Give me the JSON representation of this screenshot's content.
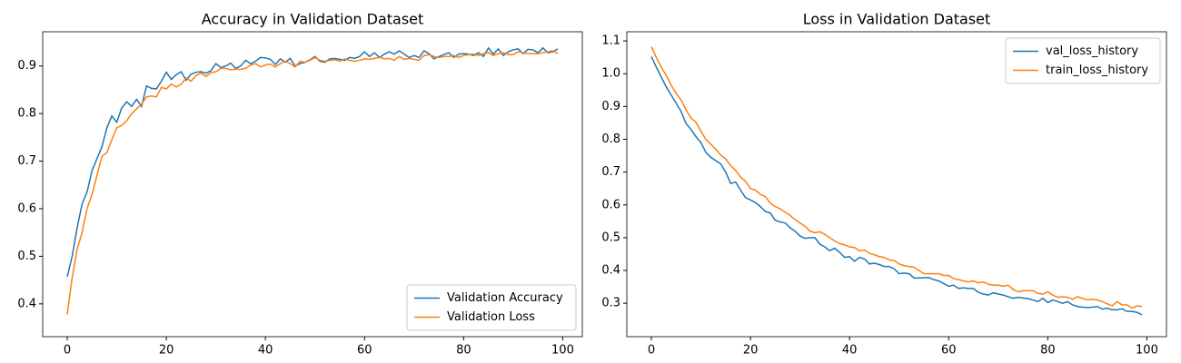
{
  "chart_data": [
    {
      "type": "line",
      "title": "Accuracy in Validation Dataset",
      "x": [
        0,
        1,
        2,
        3,
        4,
        5,
        6,
        7,
        8,
        9,
        10,
        11,
        12,
        13,
        14,
        15,
        16,
        17,
        18,
        19,
        20,
        21,
        22,
        23,
        24,
        25,
        26,
        27,
        28,
        29,
        30,
        31,
        32,
        33,
        34,
        35,
        36,
        37,
        38,
        39,
        40,
        41,
        42,
        43,
        44,
        45,
        46,
        47,
        48,
        49,
        50,
        51,
        52,
        53,
        54,
        55,
        56,
        57,
        58,
        59,
        60,
        61,
        62,
        63,
        64,
        65,
        66,
        67,
        68,
        69,
        70,
        71,
        72,
        73,
        74,
        75,
        76,
        77,
        78,
        79,
        80,
        81,
        82,
        83,
        84,
        85,
        86,
        87,
        88,
        89,
        90,
        91,
        92,
        93,
        94,
        95,
        96,
        97,
        98,
        99
      ],
      "series": [
        {
          "name": "Validation Accuracy",
          "color": "#1f77b4",
          "values": [
            0.457,
            0.5,
            0.56,
            0.61,
            0.635,
            0.68,
            0.705,
            0.73,
            0.77,
            0.795,
            0.782,
            0.812,
            0.825,
            0.815,
            0.83,
            0.815,
            0.858,
            0.853,
            0.852,
            0.868,
            0.887,
            0.872,
            0.882,
            0.888,
            0.87,
            0.883,
            0.887,
            0.888,
            0.885,
            0.89,
            0.905,
            0.897,
            0.9,
            0.906,
            0.895,
            0.9,
            0.912,
            0.905,
            0.91,
            0.918,
            0.917,
            0.914,
            0.903,
            0.915,
            0.908,
            0.916,
            0.9,
            0.905,
            0.908,
            0.913,
            0.92,
            0.91,
            0.908,
            0.915,
            0.916,
            0.914,
            0.912,
            0.918,
            0.916,
            0.92,
            0.93,
            0.92,
            0.928,
            0.918,
            0.925,
            0.93,
            0.925,
            0.932,
            0.925,
            0.918,
            0.922,
            0.918,
            0.932,
            0.926,
            0.915,
            0.92,
            0.924,
            0.928,
            0.918,
            0.925,
            0.926,
            0.925,
            0.922,
            0.928,
            0.92,
            0.938,
            0.925,
            0.936,
            0.922,
            0.93,
            0.934,
            0.936,
            0.926,
            0.935,
            0.934,
            0.928,
            0.938,
            0.928,
            0.93,
            0.936
          ]
        },
        {
          "name": "Validation Loss",
          "color": "#ff7f0e",
          "values": [
            0.378,
            0.455,
            0.515,
            0.55,
            0.6,
            0.63,
            0.67,
            0.71,
            0.718,
            0.745,
            0.77,
            0.775,
            0.785,
            0.8,
            0.81,
            0.82,
            0.835,
            0.837,
            0.835,
            0.855,
            0.852,
            0.862,
            0.856,
            0.862,
            0.875,
            0.868,
            0.88,
            0.885,
            0.878,
            0.886,
            0.888,
            0.895,
            0.895,
            0.892,
            0.893,
            0.893,
            0.895,
            0.902,
            0.905,
            0.898,
            0.902,
            0.904,
            0.898,
            0.905,
            0.91,
            0.905,
            0.898,
            0.91,
            0.908,
            0.912,
            0.918,
            0.912,
            0.91,
            0.912,
            0.913,
            0.91,
            0.915,
            0.912,
            0.91,
            0.912,
            0.915,
            0.914,
            0.916,
            0.918,
            0.915,
            0.916,
            0.912,
            0.92,
            0.914,
            0.916,
            0.914,
            0.912,
            0.922,
            0.924,
            0.92,
            0.918,
            0.92,
            0.92,
            0.922,
            0.918,
            0.922,
            0.924,
            0.925,
            0.922,
            0.926,
            0.928,
            0.922,
            0.926,
            0.928,
            0.924,
            0.924,
            0.93,
            0.928,
            0.926,
            0.926,
            0.926,
            0.928,
            0.93,
            0.932,
            0.926
          ]
        }
      ],
      "xlim": [
        -4.95,
        103.95
      ],
      "xticks": [
        0,
        20,
        40,
        60,
        80,
        100
      ],
      "ylim": [
        0.331,
        0.972
      ],
      "yticks": [
        0.4,
        0.5,
        0.6,
        0.7,
        0.8,
        0.9
      ],
      "legend": "lower right"
    },
    {
      "type": "line",
      "title": "Loss in Validation Dataset",
      "x": [
        0,
        1,
        2,
        3,
        4,
        5,
        6,
        7,
        8,
        9,
        10,
        11,
        12,
        13,
        14,
        15,
        16,
        17,
        18,
        19,
        20,
        21,
        22,
        23,
        24,
        25,
        26,
        27,
        28,
        29,
        30,
        31,
        32,
        33,
        34,
        35,
        36,
        37,
        38,
        39,
        40,
        41,
        42,
        43,
        44,
        45,
        46,
        47,
        48,
        49,
        50,
        51,
        52,
        53,
        54,
        55,
        56,
        57,
        58,
        59,
        60,
        61,
        62,
        63,
        64,
        65,
        66,
        67,
        68,
        69,
        70,
        71,
        72,
        73,
        74,
        75,
        76,
        77,
        78,
        79,
        80,
        81,
        82,
        83,
        84,
        85,
        86,
        87,
        88,
        89,
        90,
        91,
        92,
        93,
        94,
        95,
        96,
        97,
        98,
        99
      ],
      "series": [
        {
          "name": "val_loss_history",
          "color": "#1f77b4",
          "values": [
            1.052,
            1.02,
            0.99,
            0.96,
            0.935,
            0.91,
            0.885,
            0.848,
            0.83,
            0.808,
            0.79,
            0.76,
            0.745,
            0.735,
            0.725,
            0.7,
            0.665,
            0.67,
            0.645,
            0.622,
            0.615,
            0.607,
            0.595,
            0.58,
            0.575,
            0.553,
            0.548,
            0.545,
            0.53,
            0.52,
            0.505,
            0.498,
            0.5,
            0.5,
            0.48,
            0.472,
            0.46,
            0.468,
            0.455,
            0.44,
            0.442,
            0.428,
            0.44,
            0.435,
            0.42,
            0.422,
            0.418,
            0.412,
            0.412,
            0.405,
            0.39,
            0.392,
            0.39,
            0.377,
            0.377,
            0.378,
            0.378,
            0.372,
            0.368,
            0.36,
            0.352,
            0.355,
            0.345,
            0.347,
            0.345,
            0.345,
            0.333,
            0.328,
            0.325,
            0.332,
            0.328,
            0.325,
            0.32,
            0.315,
            0.318,
            0.316,
            0.314,
            0.31,
            0.305,
            0.315,
            0.302,
            0.31,
            0.305,
            0.3,
            0.305,
            0.295,
            0.29,
            0.288,
            0.287,
            0.288,
            0.29,
            0.282,
            0.285,
            0.28,
            0.28,
            0.283,
            0.275,
            0.275,
            0.272,
            0.265
          ]
        },
        {
          "name": "train_loss_history",
          "color": "#ff7f0e",
          "values": [
            1.082,
            1.05,
            1.02,
            0.995,
            0.965,
            0.94,
            0.92,
            0.89,
            0.865,
            0.852,
            0.825,
            0.8,
            0.785,
            0.77,
            0.752,
            0.74,
            0.72,
            0.705,
            0.685,
            0.672,
            0.65,
            0.645,
            0.632,
            0.625,
            0.605,
            0.595,
            0.588,
            0.578,
            0.568,
            0.555,
            0.545,
            0.535,
            0.52,
            0.515,
            0.518,
            0.51,
            0.5,
            0.49,
            0.482,
            0.478,
            0.472,
            0.47,
            0.46,
            0.462,
            0.452,
            0.448,
            0.442,
            0.44,
            0.432,
            0.43,
            0.42,
            0.415,
            0.412,
            0.41,
            0.4,
            0.39,
            0.39,
            0.39,
            0.39,
            0.385,
            0.385,
            0.375,
            0.372,
            0.368,
            0.365,
            0.368,
            0.362,
            0.365,
            0.358,
            0.355,
            0.355,
            0.352,
            0.355,
            0.342,
            0.335,
            0.338,
            0.338,
            0.338,
            0.33,
            0.328,
            0.335,
            0.325,
            0.318,
            0.32,
            0.318,
            0.312,
            0.32,
            0.315,
            0.31,
            0.312,
            0.31,
            0.305,
            0.298,
            0.292,
            0.305,
            0.295,
            0.295,
            0.285,
            0.292,
            0.29
          ]
        }
      ],
      "xlim": [
        -4.95,
        103.95
      ],
      "xticks": [
        0,
        20,
        40,
        60,
        80,
        100
      ],
      "ylim": [
        0.198,
        1.128
      ],
      "yticks": [
        0.3,
        0.4,
        0.5,
        0.6,
        0.7,
        0.8,
        0.9,
        {
          "value": 1,
          "label": "1.0"
        },
        1.1
      ],
      "legend": "upper right"
    }
  ]
}
